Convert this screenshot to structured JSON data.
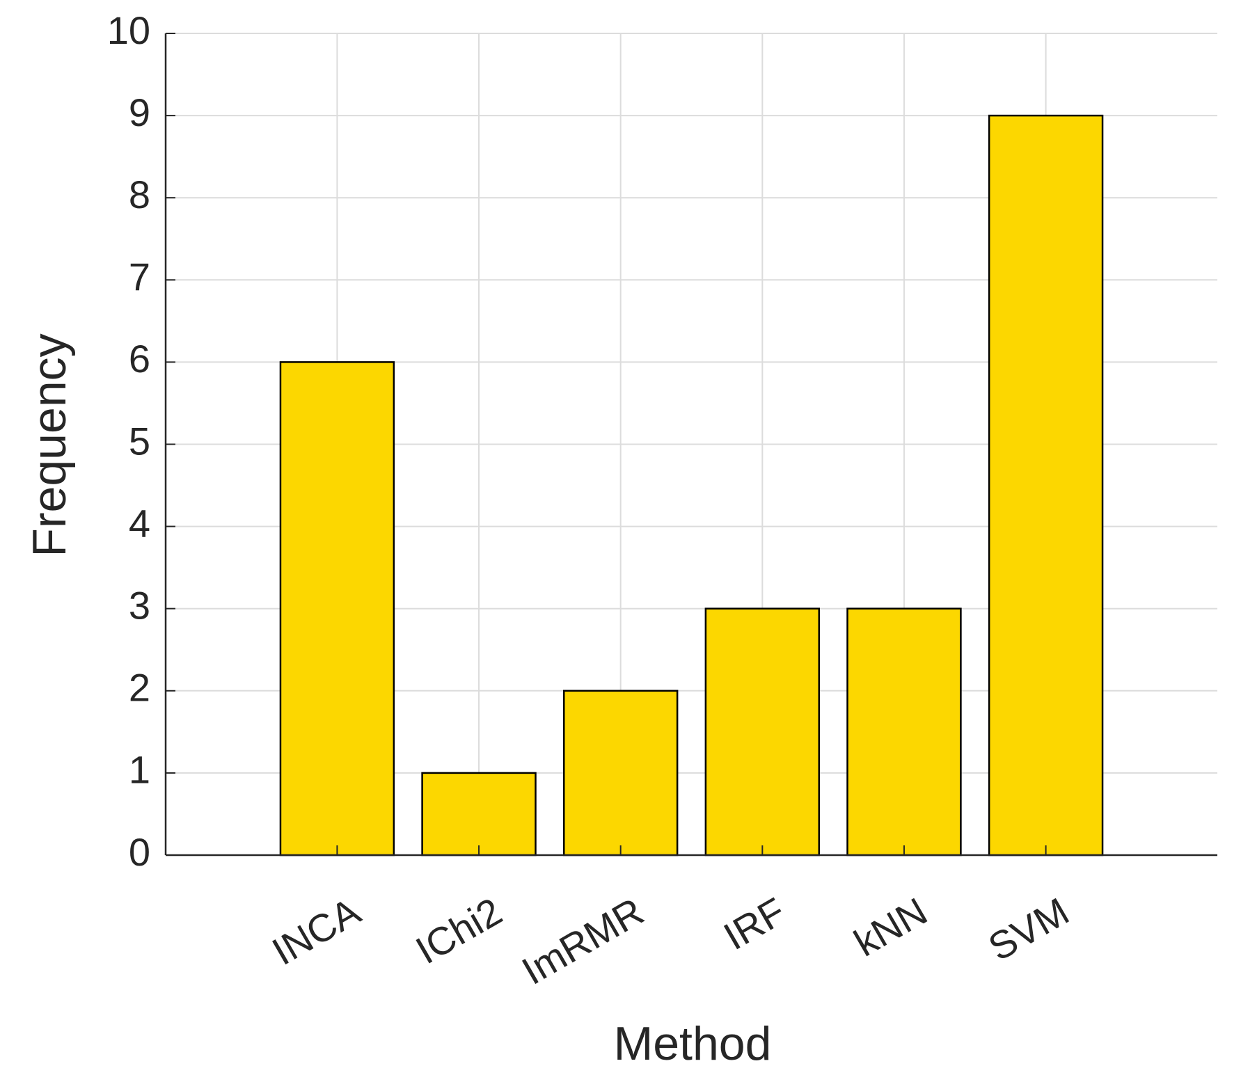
{
  "chart_data": {
    "type": "bar",
    "categories": [
      "INCA",
      "IChi2",
      "ImRMR",
      "IRF",
      "kNN",
      "SVM"
    ],
    "values": [
      6,
      1,
      2,
      3,
      3,
      9
    ],
    "color": "#fcd700",
    "x_label": "Method",
    "y_label": "Frequency",
    "ylim": [
      0,
      10
    ],
    "yticks": [
      0,
      1,
      2,
      3,
      4,
      5,
      6,
      7,
      8,
      9,
      10
    ],
    "grid": true
  }
}
